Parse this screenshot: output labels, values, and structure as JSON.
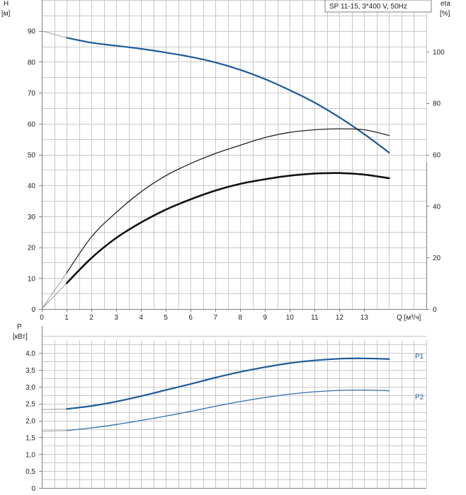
{
  "chart_data": [
    {
      "type": "line",
      "title": "SP 11-15, 3*400 V, 50Hz",
      "xlabel": "Q [м³/ч]",
      "ylabel": "H",
      "ylabel_unit": "[м]",
      "y2label": "eta",
      "y2label_unit": "[%]",
      "xlim": [
        0,
        15.5
      ],
      "ylim": [
        0,
        100
      ],
      "y2lim": [
        0,
        120
      ],
      "x_ticks": [
        0,
        1,
        2,
        3,
        4,
        5,
        6,
        7,
        8,
        9,
        10,
        11,
        12,
        13
      ],
      "y_ticks": [
        0,
        10,
        20,
        30,
        40,
        50,
        60,
        70,
        80,
        90
      ],
      "y2_ticks": [
        0,
        20,
        40,
        60,
        80,
        100
      ],
      "grid": true,
      "series": [
        {
          "role": "head",
          "axis": "left",
          "color": "#1d5a99",
          "x": [
            1,
            2,
            3,
            4,
            5,
            6,
            7,
            8,
            9,
            10,
            11,
            12,
            13,
            14
          ],
          "y": [
            87.8,
            86.2,
            85.2,
            84.2,
            83.0,
            81.6,
            79.8,
            77.4,
            74.4,
            70.8,
            66.8,
            62.0,
            56.6,
            50.6
          ]
        },
        {
          "role": "head-extrapolated",
          "axis": "left",
          "color": "#999999",
          "x": [
            0,
            1
          ],
          "y": [
            90.0,
            87.8
          ]
        },
        {
          "role": "efficiency-thin",
          "axis": "right",
          "color": "#222222",
          "x": [
            1,
            2,
            3,
            4,
            5,
            6,
            7,
            8,
            9,
            10,
            11,
            12,
            13,
            14
          ],
          "y": [
            14.0,
            28.0,
            37.5,
            45.5,
            51.8,
            56.5,
            60.4,
            63.6,
            66.6,
            68.6,
            69.6,
            70.0,
            69.6,
            67.4
          ]
        },
        {
          "role": "efficiency-thick",
          "axis": "right",
          "color": "#111111",
          "x": [
            1,
            2,
            3,
            4,
            5,
            6,
            7,
            8,
            9,
            10,
            11,
            12,
            13,
            14
          ],
          "y": [
            10.0,
            19.8,
            27.6,
            33.6,
            38.6,
            42.6,
            46.0,
            48.6,
            50.4,
            51.8,
            52.6,
            52.8,
            52.2,
            50.8
          ]
        }
      ]
    },
    {
      "type": "line",
      "ylabel": "P",
      "ylabel_unit": "[кВт]",
      "xlim": [
        0,
        15.5
      ],
      "ylim": [
        0,
        4.8
      ],
      "y_ticks": [
        "0",
        "0,5",
        "1,0",
        "1,5",
        "2,0",
        "2,5",
        "3,0",
        "3,5",
        "4,0"
      ],
      "y_tick_values": [
        0,
        0.5,
        1.0,
        1.5,
        2.0,
        2.5,
        3.0,
        3.5,
        4.0
      ],
      "grid": true,
      "series": [
        {
          "name": "P1",
          "color": "#1d5a99",
          "x": [
            1,
            2,
            3,
            4,
            5,
            6,
            7,
            8,
            9,
            10,
            11,
            12,
            13,
            14
          ],
          "y": [
            2.34,
            2.43,
            2.56,
            2.72,
            2.9,
            3.08,
            3.27,
            3.44,
            3.58,
            3.7,
            3.78,
            3.83,
            3.84,
            3.82
          ]
        },
        {
          "name": "P2",
          "color": "#2e6fae",
          "x": [
            1,
            2,
            3,
            4,
            5,
            6,
            7,
            8,
            9,
            10,
            11,
            12,
            13,
            14
          ],
          "y": [
            1.7,
            1.78,
            1.88,
            2.0,
            2.13,
            2.27,
            2.42,
            2.56,
            2.68,
            2.78,
            2.85,
            2.89,
            2.9,
            2.88
          ]
        },
        {
          "name": "",
          "role": "P1-extrapolated",
          "color": "#999999",
          "x": [
            0,
            1
          ],
          "y": [
            2.32,
            2.34
          ]
        },
        {
          "name": "",
          "role": "P2-extrapolated",
          "color": "#999999",
          "x": [
            0,
            1
          ],
          "y": [
            1.68,
            1.7
          ]
        }
      ]
    }
  ]
}
